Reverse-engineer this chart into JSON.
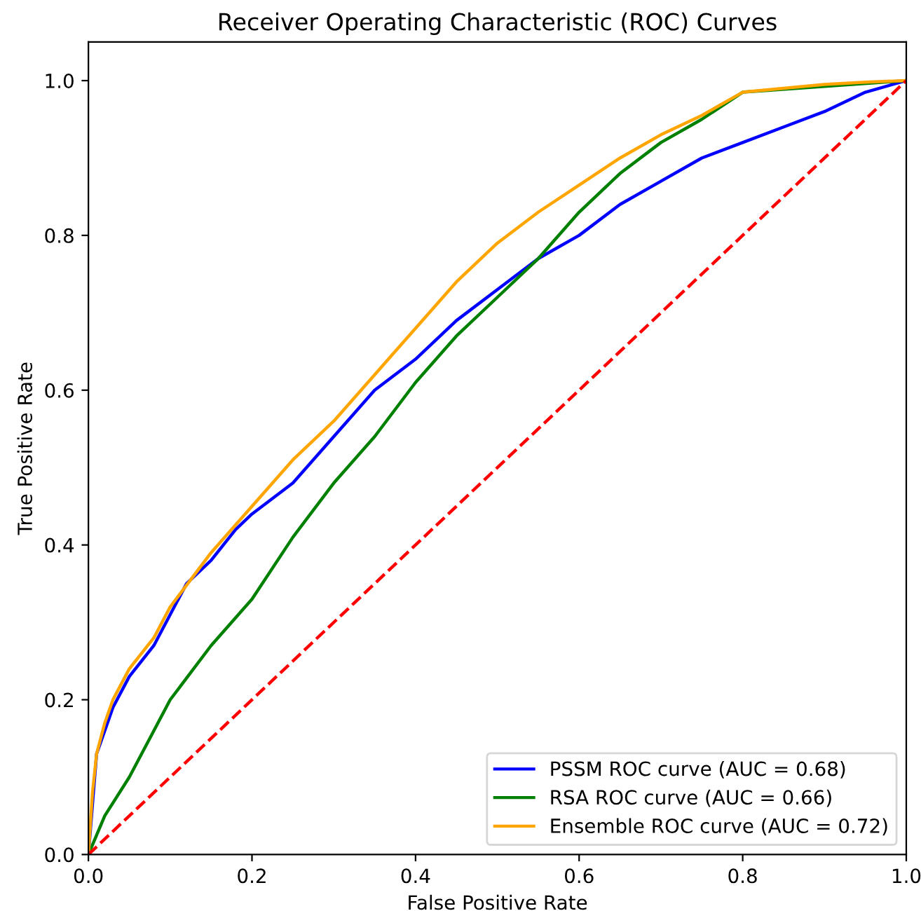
{
  "chart_data": {
    "type": "line",
    "title": "Receiver Operating Characteristic (ROC) Curves",
    "xlabel": "False Positive Rate",
    "ylabel": "True Positive Rate",
    "xlim": [
      0,
      1.0
    ],
    "ylim": [
      0,
      1.05
    ],
    "xticks": [
      {
        "value": 0,
        "label": "0.0"
      },
      0.2,
      0.4,
      0.6,
      0.8,
      {
        "value": 1,
        "label": "1.0"
      }
    ],
    "yticks": [
      {
        "value": 0,
        "label": "0.0"
      },
      0.2,
      0.4,
      0.6,
      0.8,
      {
        "value": 1,
        "label": "1.0"
      }
    ],
    "grid": false,
    "legend": "bottom right",
    "marker": "none",
    "series": [
      {
        "name": "PSSM ROC curve (AUC = 0.68)",
        "color": "#0000ff",
        "line_style": "solid",
        "x": [
          0,
          0.01,
          0.02,
          0.03,
          0.05,
          0.08,
          0.1,
          0.12,
          0.15,
          0.18,
          0.2,
          0.25,
          0.3,
          0.35,
          0.4,
          0.45,
          0.5,
          0.55,
          0.6,
          0.65,
          0.7,
          0.75,
          0.8,
          0.85,
          0.9,
          0.95,
          1
        ],
        "values": [
          0,
          0.13,
          0.16,
          0.19,
          0.23,
          0.27,
          0.31,
          0.35,
          0.38,
          0.42,
          0.44,
          0.48,
          0.54,
          0.6,
          0.64,
          0.69,
          0.73,
          0.77,
          0.8,
          0.84,
          0.87,
          0.9,
          0.92,
          0.94,
          0.96,
          0.985,
          1
        ]
      },
      {
        "name": "RSA ROC curve (AUC = 0.66)",
        "color": "#008000",
        "line_style": "solid",
        "x": [
          0,
          0.02,
          0.05,
          0.08,
          0.1,
          0.15,
          0.2,
          0.25,
          0.3,
          0.35,
          0.4,
          0.45,
          0.5,
          0.55,
          0.6,
          0.65,
          0.7,
          0.75,
          0.8,
          1
        ],
        "values": [
          0,
          0.05,
          0.1,
          0.16,
          0.2,
          0.27,
          0.33,
          0.41,
          0.48,
          0.54,
          0.61,
          0.67,
          0.72,
          0.77,
          0.83,
          0.88,
          0.92,
          0.95,
          0.985,
          1
        ]
      },
      {
        "name": "Ensemble ROC curve (AUC = 0.72)",
        "color": "#ffa500",
        "line_style": "solid",
        "x": [
          0,
          0.005,
          0.01,
          0.02,
          0.03,
          0.05,
          0.08,
          0.1,
          0.15,
          0.2,
          0.25,
          0.3,
          0.35,
          0.4,
          0.45,
          0.5,
          0.55,
          0.6,
          0.65,
          0.7,
          0.75,
          0.8,
          0.85,
          0.9,
          0.95,
          1
        ],
        "values": [
          0,
          0.08,
          0.13,
          0.17,
          0.2,
          0.24,
          0.28,
          0.32,
          0.39,
          0.45,
          0.51,
          0.56,
          0.62,
          0.68,
          0.74,
          0.79,
          0.83,
          0.865,
          0.9,
          0.93,
          0.955,
          0.985,
          0.99,
          0.995,
          0.998,
          1
        ]
      },
      {
        "color": "#ff0000",
        "line_style": "dashed",
        "x": [
          0,
          1
        ],
        "values": [
          0,
          1
        ]
      }
    ]
  }
}
